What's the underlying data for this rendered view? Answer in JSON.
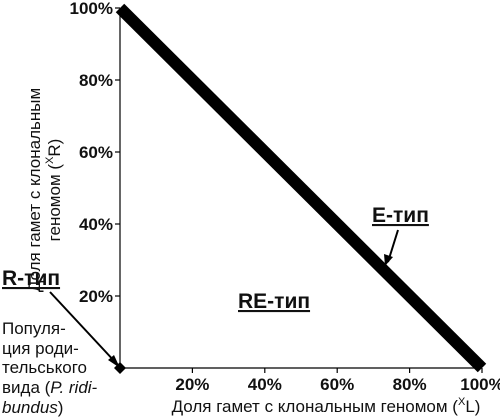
{
  "chart_data": {
    "type": "line",
    "series": [
      {
        "name": "E-тип",
        "color": "#000000",
        "x": [
          0,
          100
        ],
        "values": [
          100,
          0
        ]
      }
    ],
    "xlim": [
      0,
      100
    ],
    "ylim": [
      0,
      100
    ],
    "xticks": [
      {
        "value": 20,
        "label": "20%"
      },
      {
        "value": 40,
        "label": "40%"
      },
      {
        "value": 60,
        "label": "60%"
      },
      {
        "value": 80,
        "label": "80%"
      },
      {
        "value": 100,
        "label": "100%"
      }
    ],
    "yticks": [
      {
        "value": 20,
        "label": "20%"
      },
      {
        "value": 40,
        "label": "40%"
      },
      {
        "value": 60,
        "label": "60%"
      },
      {
        "value": 80,
        "label": "80%"
      },
      {
        "value": 100,
        "label": "100%"
      }
    ],
    "xlabel": {
      "text": "Доля гамет с клональным геномом (",
      "sup": "X",
      "end": "L)"
    },
    "ylabel": {
      "line1": "Доля гамет с клональным",
      "line2": "геномом (",
      "sup": "X",
      "end": "R)"
    },
    "annotations": {
      "region": "RE-тип",
      "r_type": "R-тип",
      "population": [
        "Популя-",
        "ция роди-",
        "тельського",
        "вида (",
        "P. ridi-",
        "bundus",
        ")"
      ]
    }
  }
}
